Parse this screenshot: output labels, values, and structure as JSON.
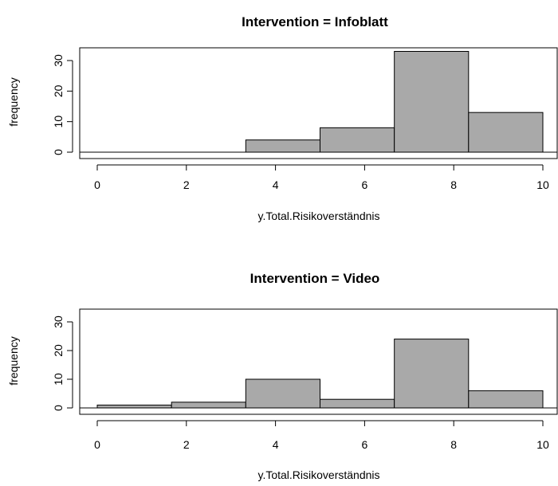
{
  "chart_data": [
    {
      "type": "bar",
      "title": "Intervention = Infoblatt",
      "xlabel": "y.Total.Risikoverständnis",
      "ylabel": "frequency",
      "bin_edges": [
        0,
        1.667,
        3.333,
        5,
        6.667,
        8.333,
        10
      ],
      "values": [
        0,
        0,
        4,
        8,
        33,
        13
      ],
      "xlim": [
        0,
        10
      ],
      "ylim": [
        0,
        35
      ],
      "x_ticks": [
        0,
        2,
        4,
        6,
        8,
        10
      ],
      "y_ticks": [
        0,
        10,
        20,
        30
      ],
      "bar_color": "#a9a9a9"
    },
    {
      "type": "bar",
      "title": "Intervention = Video",
      "xlabel": "y.Total.Risikoverständnis",
      "ylabel": "frequency",
      "bin_edges": [
        0,
        1.667,
        3.333,
        5,
        6.667,
        8.333,
        10
      ],
      "values": [
        1,
        2,
        10,
        3,
        24,
        6
      ],
      "xlim": [
        0,
        10
      ],
      "ylim": [
        0,
        35
      ],
      "x_ticks": [
        0,
        2,
        4,
        6,
        8,
        10
      ],
      "y_ticks": [
        0,
        10,
        20,
        30
      ],
      "bar_color": "#a9a9a9"
    }
  ]
}
